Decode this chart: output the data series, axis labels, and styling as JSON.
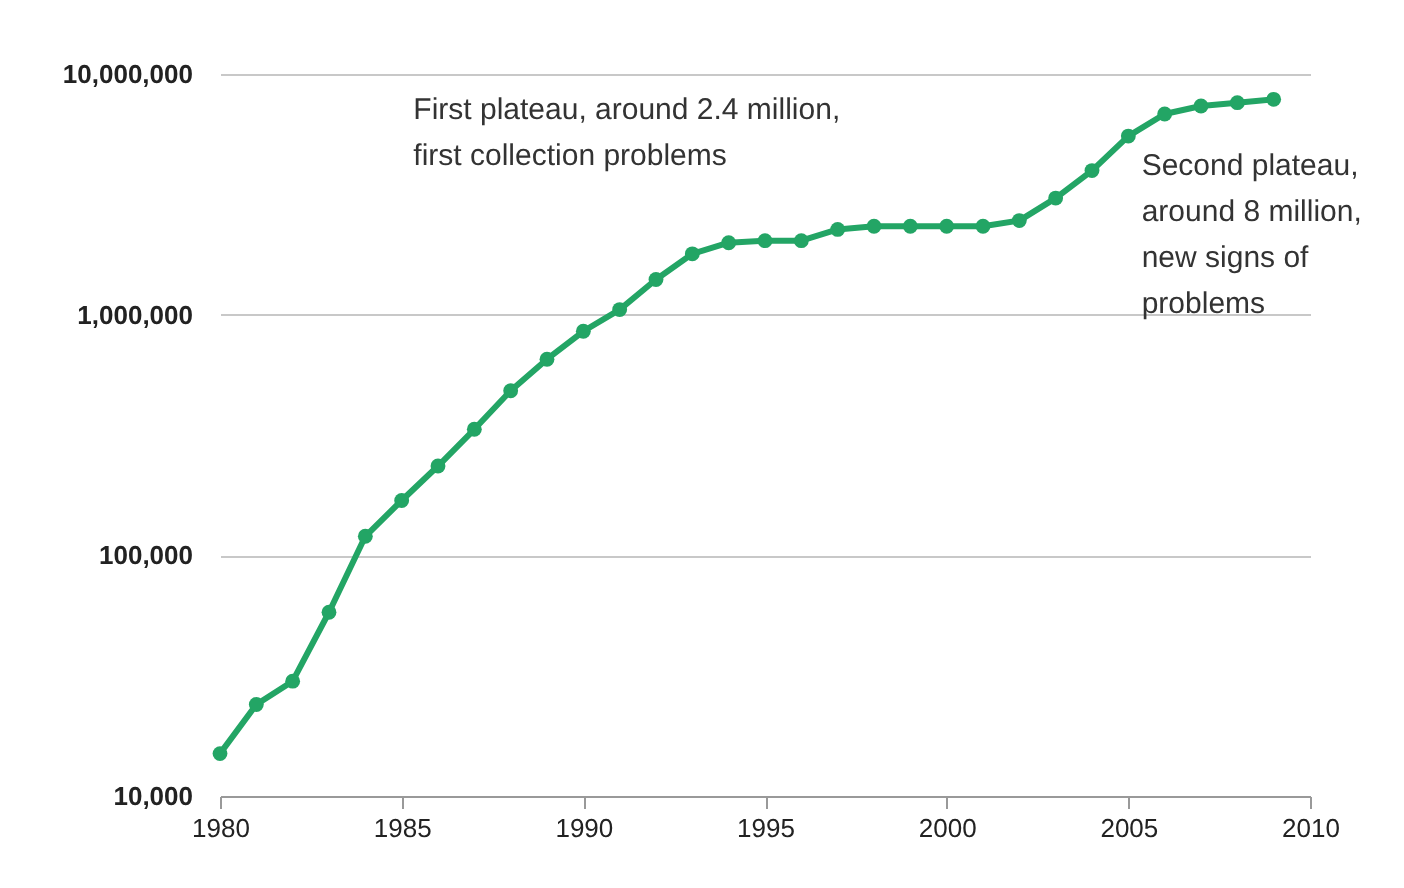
{
  "chart_data": {
    "type": "line",
    "x": [
      1980,
      1981,
      1982,
      1983,
      1984,
      1985,
      1986,
      1987,
      1988,
      1989,
      1990,
      1991,
      1992,
      1993,
      1994,
      1995,
      1996,
      1997,
      1998,
      1999,
      2000,
      2001,
      2002,
      2003,
      2004,
      2005,
      2006,
      2007,
      2008,
      2009
    ],
    "series": [
      {
        "color": "#23a565",
        "values": [
          15000,
          24000,
          30000,
          58000,
          120000,
          169000,
          235000,
          334000,
          483000,
          653000,
          853000,
          1050000,
          1400000,
          1790000,
          1990000,
          2030000,
          2030000,
          2260000,
          2330000,
          2330000,
          2330000,
          2330000,
          2460000,
          3050000,
          3970000,
          5520000,
          6820000,
          7360000,
          7600000,
          7850000
        ]
      }
    ],
    "log": "y",
    "xlim": [
      1980,
      2010
    ],
    "xticks": [
      1980,
      1985,
      1990,
      1995,
      2000,
      2005,
      2010
    ],
    "ylim": [
      10000,
      10000000
    ],
    "yticks": [
      {
        "value": 10000,
        "label": "10,000"
      },
      {
        "value": 100000,
        "label": "100,000"
      },
      {
        "value": 1000000,
        "label": "1,000,000"
      },
      {
        "value": 10000000,
        "label": "10,000,000"
      }
    ],
    "grid": "y",
    "marker": "circle",
    "line_style": "solid",
    "annotations": [
      {
        "text": "First plateau, around 2.4 million, first collection problems",
        "x": 1996,
        "y": 2030000
      },
      {
        "text": "Second plateau, around 8 million, new signs of problems",
        "x": 2009,
        "y": 7850000
      }
    ]
  }
}
